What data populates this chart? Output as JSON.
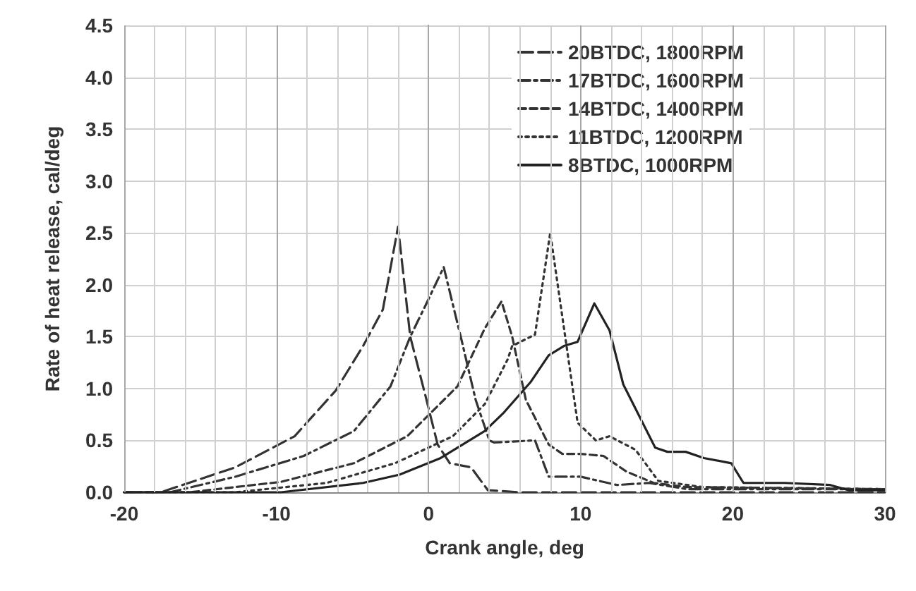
{
  "chart_data": {
    "type": "line",
    "xlabel": "Crank angle, deg",
    "ylabel": "Rate of heat release, cal/deg",
    "xlim": [
      -20,
      30
    ],
    "xticks": [
      -20,
      {
        "value": -18,
        "label": null
      },
      {
        "value": -16,
        "label": null
      },
      {
        "value": -14,
        "label": null
      },
      {
        "value": -12,
        "label": null
      },
      -10,
      {
        "value": -8,
        "label": null
      },
      {
        "value": -6,
        "label": null
      },
      {
        "value": -4,
        "label": null
      },
      {
        "value": -2,
        "label": null
      },
      0,
      {
        "value": 2,
        "label": null
      },
      {
        "value": 4,
        "label": null
      },
      {
        "value": 6,
        "label": null
      },
      {
        "value": 8,
        "label": null
      },
      10,
      {
        "value": 12,
        "label": null
      },
      {
        "value": 14,
        "label": null
      },
      {
        "value": 16,
        "label": null
      },
      {
        "value": 18,
        "label": null
      },
      20,
      {
        "value": 22,
        "label": null
      },
      {
        "value": 24,
        "label": null
      },
      {
        "value": 26,
        "label": null
      },
      {
        "value": 28,
        "label": null
      },
      30
    ],
    "ylim": [
      0,
      4.5
    ],
    "yticks": [
      {
        "value": 0,
        "label": "0.0"
      },
      {
        "value": 0.5,
        "label": "0.5"
      },
      {
        "value": 1,
        "label": "1.0"
      },
      {
        "value": 1.5,
        "label": "1.5"
      },
      {
        "value": 2,
        "label": "2.0"
      },
      {
        "value": 2.5,
        "label": "2.5"
      },
      {
        "value": 3,
        "label": "3.0"
      },
      {
        "value": 3.5,
        "label": "3.5"
      },
      {
        "value": 4,
        "label": "4.0"
      },
      {
        "value": 4.5,
        "label": "4.5"
      }
    ],
    "grid": true,
    "legend": "top right",
    "marker": "none",
    "series": [
      {
        "name": "20BTDC, 1800RPM",
        "color": "#333333",
        "line_style": "longdash",
        "x": [
          -20,
          -17.6,
          -12.7,
          -8.8,
          -6.1,
          -4.3,
          -3,
          -2,
          -1.2,
          -0.2,
          0.6,
          1.4,
          2.8,
          3.9,
          6,
          30
        ],
        "values": [
          0,
          0,
          0.24,
          0.54,
          0.98,
          1.41,
          1.76,
          2.56,
          1.5,
          0.93,
          0.46,
          0.28,
          0.24,
          0.02,
          0,
          0
        ]
      },
      {
        "name": "17BTDC, 1600RPM",
        "color": "#333333",
        "line_style": "dashdot",
        "x": [
          -20,
          -17,
          -12.7,
          -8.2,
          -4.9,
          -2.5,
          -1.2,
          -0.2,
          1,
          2.2,
          3.1,
          4,
          4.3,
          7,
          7.9,
          10,
          12.4,
          14.5,
          17,
          30
        ],
        "values": [
          0,
          0,
          0.15,
          0.35,
          0.59,
          1.02,
          1.5,
          1.8,
          2.17,
          1.45,
          0.89,
          0.5,
          0.48,
          0.5,
          0.15,
          0.15,
          0.07,
          0.09,
          0.03,
          0.03
        ]
      },
      {
        "name": "14BTDC, 1400RPM",
        "color": "#333333",
        "line_style": "dashed",
        "x": [
          -20,
          -15.7,
          -9.7,
          -4.9,
          -1.4,
          1.9,
          3.7,
          4.8,
          5.5,
          6.4,
          7.9,
          8.8,
          10,
          11.5,
          13,
          14.8,
          17,
          30
        ],
        "values": [
          0,
          0,
          0.1,
          0.28,
          0.54,
          1.02,
          1.58,
          1.84,
          1.5,
          0.89,
          0.46,
          0.37,
          0.37,
          0.35,
          0.2,
          0.09,
          0.05,
          0.03
        ]
      },
      {
        "name": "11BTDC, 1200RPM",
        "color": "#333333",
        "line_style": "dotted",
        "x": [
          -20,
          -12.7,
          -6.7,
          -2.2,
          1.6,
          3.7,
          5.2,
          5.5,
          7,
          8,
          9.8,
          11,
          11.9,
          13.6,
          15.1,
          18,
          30
        ],
        "values": [
          0,
          0,
          0.09,
          0.28,
          0.54,
          0.85,
          1.28,
          1.41,
          1.52,
          2.5,
          0.67,
          0.5,
          0.54,
          0.41,
          0.11,
          0.05,
          0.03
        ]
      },
      {
        "name": "8BTDC, 1000RPM",
        "color": "#222222",
        "line_style": "solid",
        "x": [
          -20,
          -9.7,
          -4.3,
          -1.9,
          0.8,
          3.7,
          4.9,
          6.7,
          7.9,
          8.9,
          9.8,
          10.9,
          11.9,
          12.8,
          13.9,
          14.9,
          15.7,
          16.9,
          18.1,
          19.9,
          20.7,
          23.4,
          26.4,
          27.6,
          30
        ],
        "values": [
          0,
          0,
          0.09,
          0.17,
          0.33,
          0.59,
          0.76,
          1.06,
          1.32,
          1.41,
          1.45,
          1.82,
          1.56,
          1.04,
          0.72,
          0.43,
          0.39,
          0.39,
          0.33,
          0.28,
          0.09,
          0.09,
          0.07,
          0.02,
          0.02
        ]
      }
    ]
  }
}
